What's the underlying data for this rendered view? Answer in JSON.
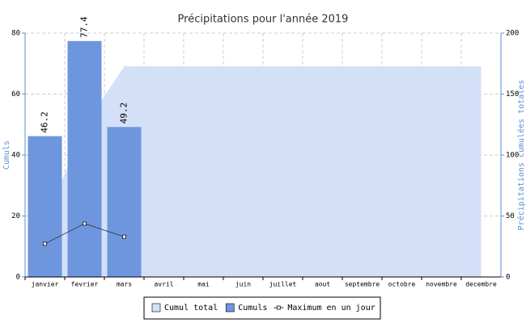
{
  "chart_data": {
    "type": "combo",
    "title": "Précipitations pour l'année 2019",
    "y_label": "Cumuls",
    "y2_label": "Précipitations cumulées totales",
    "categories": [
      "janvier",
      "fevrier",
      "mars",
      "avril",
      "mai",
      "juin",
      "juillet",
      "aout",
      "septembre",
      "octobre",
      "novembre",
      "decembre"
    ],
    "series": [
      {
        "name": "Cumul total",
        "type": "area",
        "axis": "y2",
        "color": "#d4e0f8",
        "values": [
          46.2,
          123.6,
          172.8,
          172.8,
          172.8,
          172.8,
          172.8,
          172.8,
          172.8,
          172.8,
          172.8,
          172.8
        ]
      },
      {
        "name": "Cumuls",
        "type": "bar",
        "color": "#6e96df",
        "values": [
          46.2,
          77.4,
          49.2,
          null,
          null,
          null,
          null,
          null,
          null,
          null,
          null,
          null
        ]
      },
      {
        "name": "Maximum en un jour",
        "type": "line",
        "color": "#333333",
        "values": [
          10.9,
          17.5,
          13.2,
          null,
          null,
          null,
          null,
          null,
          null,
          null,
          null,
          null
        ]
      }
    ],
    "ylim": [
      0,
      80
    ],
    "yticks": [
      0,
      20,
      40,
      60,
      80
    ],
    "y2lim": [
      0,
      200
    ],
    "y2ticks": [
      0,
      50,
      100,
      150,
      200
    ],
    "grid": true,
    "legend": "bottom"
  }
}
